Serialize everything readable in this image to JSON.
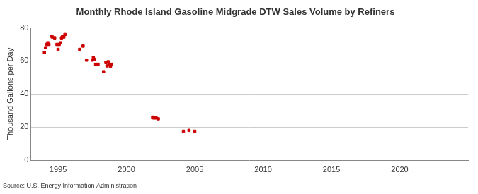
{
  "chart_data": {
    "type": "scatter",
    "title": "Monthly Rhode Island Gasoline Midgrade DTW Sales Volume by Refiners",
    "y_label": "Thousand Gallons per Day",
    "annotations": [
      "Source: U.S. Energy Information Administration"
    ],
    "x": [
      1994.0,
      1994.08,
      1994.17,
      1994.25,
      1994.33,
      1994.5,
      1994.58,
      1994.75,
      1994.92,
      1995.0,
      1995.08,
      1995.17,
      1995.25,
      1995.33,
      1995.42,
      1995.5,
      1996.58,
      1996.83,
      1997.08,
      1997.5,
      1997.58,
      1997.67,
      1997.75,
      1997.92,
      1998.33,
      1998.5,
      1998.58,
      1998.67,
      1998.75,
      1998.83,
      1998.92,
      2001.92,
      2002.0,
      2002.17,
      2002.33,
      2004.17,
      2004.58,
      2005.0
    ],
    "values": [
      65,
      68,
      70,
      71,
      70,
      75,
      74.5,
      74,
      70,
      67,
      70,
      71,
      74,
      75,
      74.5,
      76,
      67,
      69,
      60.5,
      60.5,
      62,
      61,
      58,
      58,
      53.5,
      59,
      57,
      59.5,
      58,
      56.5,
      58,
      26,
      25.5,
      25.5,
      25,
      17.5,
      18,
      17.5
    ],
    "color": "#cc0000",
    "marker": "square",
    "xlim": [
      1993,
      2025
    ],
    "xticks": [
      1995,
      2000,
      2005,
      2010,
      2015,
      2020
    ],
    "ylim": [
      0,
      80
    ],
    "yticks": [
      0,
      20,
      40,
      60,
      80
    ],
    "grid": true
  }
}
